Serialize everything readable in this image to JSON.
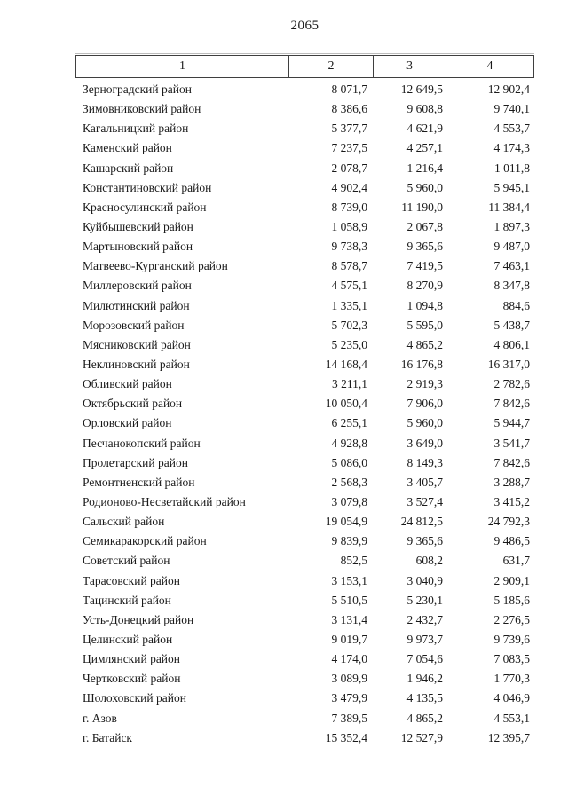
{
  "page": {
    "number": "2065"
  },
  "table": {
    "headers": [
      "1",
      "2",
      "3",
      "4"
    ],
    "rows": [
      [
        "Зерноградский район",
        "8 071,7",
        "12 649,5",
        "12 902,4"
      ],
      [
        "Зимовниковский район",
        "8 386,6",
        "9 608,8",
        "9 740,1"
      ],
      [
        "Кагальницкий район",
        "5 377,7",
        "4 621,9",
        "4 553,7"
      ],
      [
        "Каменский район",
        "7 237,5",
        "4 257,1",
        "4 174,3"
      ],
      [
        "Кашарский район",
        "2 078,7",
        "1 216,4",
        "1 011,8"
      ],
      [
        "Константиновский район",
        "4 902,4",
        "5 960,0",
        "5 945,1"
      ],
      [
        "Красносулинский район",
        "8 739,0",
        "11 190,0",
        "11 384,4"
      ],
      [
        "Куйбышевский район",
        "1 058,9",
        "2 067,8",
        "1 897,3"
      ],
      [
        "Мартыновский район",
        "9 738,3",
        "9 365,6",
        "9 487,0"
      ],
      [
        "Матвеево-Курганский район",
        "8 578,7",
        "7 419,5",
        "7 463,1"
      ],
      [
        "Миллеровский район",
        "4 575,1",
        "8 270,9",
        "8 347,8"
      ],
      [
        "Милютинский район",
        "1 335,1",
        "1 094,8",
        "884,6"
      ],
      [
        "Морозовский район",
        "5 702,3",
        "5 595,0",
        "5 438,7"
      ],
      [
        "Мясниковский район",
        "5 235,0",
        "4 865,2",
        "4 806,1"
      ],
      [
        "Неклиновский район",
        "14 168,4",
        "16 176,8",
        "16 317,0"
      ],
      [
        "Обливский район",
        "3 211,1",
        "2 919,3",
        "2 782,6"
      ],
      [
        "Октябрьский район",
        "10 050,4",
        "7 906,0",
        "7 842,6"
      ],
      [
        "Орловский район",
        "6 255,1",
        "5 960,0",
        "5 944,7"
      ],
      [
        "Песчанокопский район",
        "4 928,8",
        "3 649,0",
        "3 541,7"
      ],
      [
        "Пролетарский район",
        "5 086,0",
        "8 149,3",
        "7 842,6"
      ],
      [
        "Ремонтненский район",
        "2 568,3",
        "3 405,7",
        "3 288,7"
      ],
      [
        "Родионово-Несветайский район",
        "3 079,8",
        "3 527,4",
        "3 415,2"
      ],
      [
        "Сальский район",
        "19 054,9",
        "24 812,5",
        "24 792,3"
      ],
      [
        "Семикаракорский район",
        "9 839,9",
        "9 365,6",
        "9 486,5"
      ],
      [
        "Советский район",
        "852,5",
        "608,2",
        "631,7"
      ],
      [
        "Тарасовский район",
        "3 153,1",
        "3 040,9",
        "2 909,1"
      ],
      [
        "Тацинский район",
        "5 510,5",
        "5 230,1",
        "5 185,6"
      ],
      [
        "Усть-Донецкий район",
        "3 131,4",
        "2 432,7",
        "2 276,5"
      ],
      [
        "Целинский район",
        "9 019,7",
        "9 973,7",
        "9 739,6"
      ],
      [
        "Цимлянский район",
        "4 174,0",
        "7 054,6",
        "7 083,5"
      ],
      [
        "Чертковский район",
        "3 089,9",
        "1 946,2",
        "1 770,3"
      ],
      [
        "Шолоховский район",
        "3 479,9",
        "4 135,5",
        "4 046,9"
      ],
      [
        "г. Азов",
        "7 389,5",
        "4 865,2",
        "4 553,1"
      ],
      [
        "г. Батайск",
        "15 352,4",
        "12 527,9",
        "12 395,7"
      ]
    ]
  }
}
